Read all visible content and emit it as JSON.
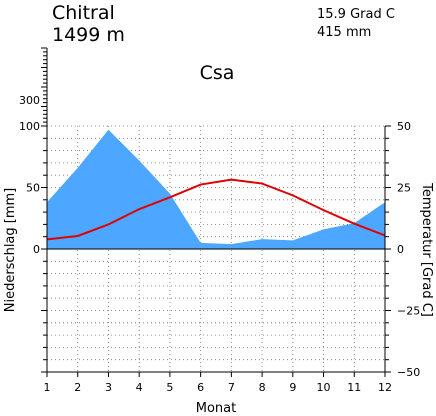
{
  "header": {
    "station": "Chitral",
    "elevation": "1499 m",
    "mean_temp": "15.9 Grad C",
    "annual_precip": "415 mm",
    "climate_class": "Csa"
  },
  "chart_data": {
    "type": "line",
    "xlabel": "Monat",
    "ylabel_left": "Niederschlag [mm]",
    "ylabel_right": "Temperatur [Grad C]",
    "x": [
      1,
      2,
      3,
      4,
      5,
      6,
      7,
      8,
      9,
      10,
      11,
      12
    ],
    "x_ticks": [
      "1",
      "2",
      "3",
      "4",
      "5",
      "6",
      "7",
      "8",
      "9",
      "10",
      "11",
      "12"
    ],
    "left_ticks": [
      {
        "value": 100,
        "label": "100"
      },
      {
        "value": 50,
        "label": "50"
      },
      {
        "value": 0,
        "label": "0"
      }
    ],
    "left_extra_label": {
      "value": 300,
      "label": "300"
    },
    "right_ticks": [
      {
        "value": 50,
        "label": "50"
      },
      {
        "value": 25,
        "label": "25"
      },
      {
        "value": 0,
        "label": "0"
      },
      {
        "value": -25,
        "label": "−25"
      },
      {
        "value": -50,
        "label": "−50"
      }
    ],
    "precip_ylim": [
      -100,
      100
    ],
    "temp_ylim": [
      -50,
      50
    ],
    "series": [
      {
        "name": "Niederschlag",
        "unit": "mm",
        "values": [
          38,
          66,
          97,
          72,
          45,
          5,
          4,
          8,
          7,
          16,
          21,
          38
        ],
        "color": "#4da6ff"
      },
      {
        "name": "Temperatur",
        "unit": "Grad C",
        "values": [
          3.9,
          5.3,
          10.0,
          16.2,
          21.0,
          26.2,
          28.2,
          26.6,
          21.8,
          15.8,
          10.3,
          5.5
        ],
        "color": "#e00000"
      }
    ]
  }
}
